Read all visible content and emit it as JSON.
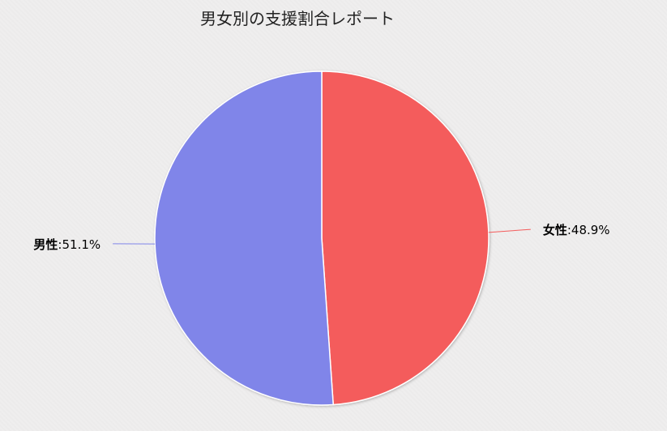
{
  "chart_data": {
    "type": "pie",
    "title": "男女別の支援割合レポート",
    "slices": [
      {
        "name": "女性",
        "value": 48.9,
        "label": "48.9%",
        "color": "#f45b5b"
      },
      {
        "name": "男性",
        "value": 51.1,
        "label": "51.1%",
        "color": "#8085e9"
      }
    ],
    "start_angle": "top",
    "direction": "clockwise",
    "legend": "none"
  }
}
